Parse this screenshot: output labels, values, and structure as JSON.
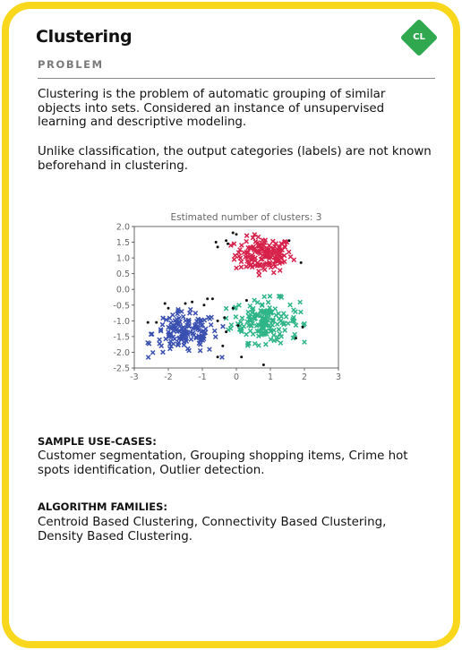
{
  "card": {
    "title": "Clustering",
    "badge": "CL",
    "subtitle": "PROBLEM",
    "paragraphs": [
      "Clustering is the problem of automatic grouping of similar objects into sets. Considered an instance of unsupervised learning and descriptive modeling.",
      "Unlike classification, the output categories (labels) are not known beforehand in clustering."
    ],
    "sections": [
      {
        "title": "SAMPLE USE-CASES:",
        "body": "Customer segmentation, Grouping shopping items, Crime hot spots identification, Outlier detection."
      },
      {
        "title": "ALGORITHM FAMILIES:",
        "body": "Centroid Based Clustering, Connectivity Based Clustering, Density Based Clustering."
      }
    ],
    "colors": {
      "border": "#f9d71c",
      "badge": "#2fa84f"
    }
  },
  "chart_data": {
    "type": "scatter",
    "title": "Estimated number of clusters: 3",
    "xlabel": "",
    "ylabel": "",
    "xlim": [
      -3,
      3
    ],
    "ylim": [
      -2.5,
      2.0
    ],
    "xticks": [
      "-3",
      "-2",
      "-1",
      "0",
      "1",
      "2",
      "3"
    ],
    "yticks": [
      "2.0",
      "1.5",
      "1.0",
      "0.5",
      "0.0",
      "-0.5",
      "-1.0",
      "-1.5",
      "-2.0",
      "-2.5"
    ],
    "grid": false,
    "series": [
      {
        "marker": "x",
        "color": "#d6214b",
        "center": [
          0.8,
          1.1
        ],
        "spread": [
          0.42,
          0.28
        ],
        "count": 150
      },
      {
        "marker": "x",
        "color": "#2fb587",
        "center": [
          0.85,
          -1.0
        ],
        "spread": [
          0.5,
          0.34
        ],
        "count": 160
      },
      {
        "marker": "x",
        "color": "#3a50b0",
        "center": [
          -1.5,
          -1.4
        ],
        "spread": [
          0.48,
          0.33
        ],
        "count": 150
      }
    ],
    "noise": {
      "marker": "dot",
      "color": "#111111",
      "points": [
        [
          -0.1,
          1.8
        ],
        [
          0.0,
          1.75
        ],
        [
          -0.3,
          1.55
        ],
        [
          -0.25,
          1.45
        ],
        [
          -0.6,
          1.5
        ],
        [
          -0.55,
          1.35
        ],
        [
          1.55,
          1.55
        ],
        [
          1.9,
          0.85
        ],
        [
          -0.85,
          -0.3
        ],
        [
          -1.5,
          -0.45
        ],
        [
          -1.3,
          -0.4
        ],
        [
          -2.1,
          -0.45
        ],
        [
          -2.0,
          -0.6
        ],
        [
          -0.95,
          -0.5
        ],
        [
          -0.7,
          -0.3
        ],
        [
          0.3,
          -0.35
        ],
        [
          -0.1,
          -0.6
        ],
        [
          -0.55,
          -1.0
        ],
        [
          -0.35,
          -0.9
        ],
        [
          -0.3,
          -1.35
        ],
        [
          -0.4,
          -1.8
        ],
        [
          -0.55,
          -2.15
        ],
        [
          0.15,
          -2.15
        ],
        [
          1.95,
          -1.2
        ],
        [
          1.75,
          -1.55
        ],
        [
          0.8,
          -2.4
        ],
        [
          -2.35,
          -1.05
        ],
        [
          -2.6,
          -1.05
        ],
        [
          0.05,
          -1.15
        ]
      ]
    }
  }
}
